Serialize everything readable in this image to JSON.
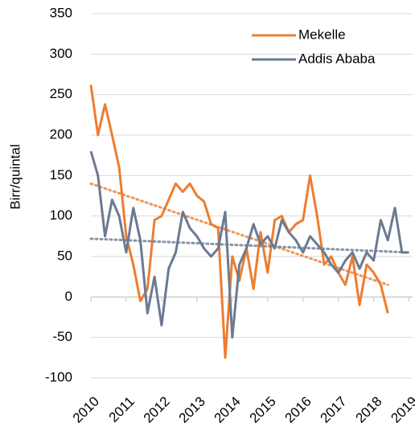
{
  "chart_data": {
    "type": "line",
    "y_label": "Birr/quintal",
    "x": [
      2010.0,
      2010.2,
      2010.4,
      2010.6,
      2010.8,
      2011.0,
      2011.2,
      2011.4,
      2011.6,
      2011.8,
      2012.0,
      2012.2,
      2012.4,
      2012.6,
      2012.8,
      2013.0,
      2013.2,
      2013.4,
      2013.6,
      2013.8,
      2014.0,
      2014.2,
      2014.4,
      2014.6,
      2014.8,
      2015.0,
      2015.2,
      2015.4,
      2015.6,
      2015.8,
      2016.0,
      2016.2,
      2016.4,
      2016.6,
      2016.8,
      2017.0,
      2017.2,
      2017.4,
      2017.6,
      2017.8,
      2018.0,
      2018.2,
      2018.4,
      2018.6,
      2018.8,
      2019.0
    ],
    "series": [
      {
        "name": "Mekelle",
        "color": "#ed7d31",
        "trend": [
          140,
          15
        ],
        "values": [
          262,
          200,
          238,
          200,
          160,
          75,
          40,
          -5,
          10,
          95,
          100,
          120,
          140,
          130,
          140,
          125,
          118,
          90,
          85,
          -75,
          50,
          20,
          60,
          10,
          80,
          30,
          95,
          100,
          80,
          90,
          95,
          150,
          100,
          40,
          50,
          30,
          15,
          50,
          -10,
          40,
          30,
          15,
          -20,
          null,
          null,
          null
        ]
      },
      {
        "name": "Addis Ababa",
        "color": "#6a7a92",
        "trend": [
          72,
          55
        ],
        "values": [
          180,
          150,
          75,
          120,
          100,
          55,
          110,
          70,
          -20,
          25,
          -35,
          35,
          55,
          105,
          85,
          75,
          60,
          50,
          60,
          105,
          -50,
          40,
          60,
          90,
          65,
          75,
          60,
          95,
          80,
          70,
          55,
          75,
          65,
          55,
          40,
          30,
          45,
          55,
          35,
          55,
          45,
          95,
          70,
          110,
          55,
          55
        ]
      }
    ],
    "xlim": [
      2010,
      2019.1
    ],
    "xticks": [
      2010,
      2011,
      2012,
      2013,
      2014,
      2015,
      2016,
      2017,
      2018,
      2019
    ],
    "ylim": [
      -100,
      350
    ],
    "yticks": [
      -100,
      -50,
      0,
      50,
      100,
      150,
      200,
      250,
      300,
      350
    ],
    "grid": true,
    "legend": "top-right"
  }
}
